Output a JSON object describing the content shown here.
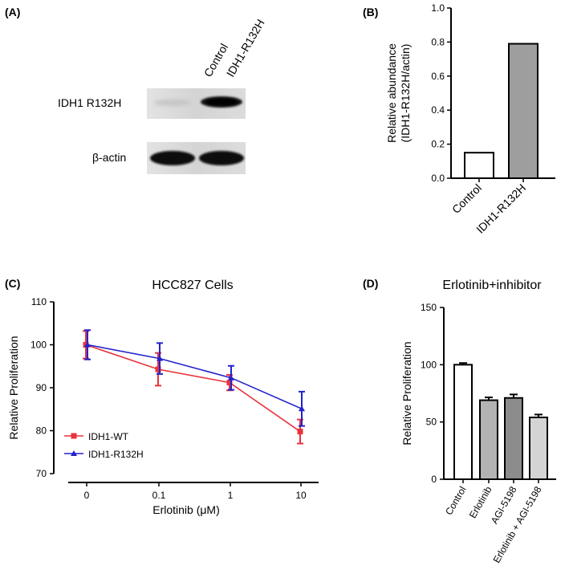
{
  "panels": {
    "a": {
      "letter": "(A)",
      "lane_labels": [
        "Control",
        "IDH1-R132H"
      ],
      "row_labels": [
        "IDH1 R132H",
        "β-actin"
      ]
    },
    "b": {
      "letter": "(B)"
    },
    "c": {
      "letter": "(C)"
    },
    "d": {
      "letter": "(D)"
    }
  },
  "chart_data": [
    {
      "panel": "B",
      "type": "bar",
      "categories": [
        "Control",
        "IDH1-R132H"
      ],
      "values": [
        0.15,
        0.79
      ],
      "colors": [
        "#ffffff",
        "#9e9e9e"
      ],
      "title": "",
      "xlabel": "",
      "ylabel": "Relative abundance (IDH1-R132H/actin)",
      "ylabel_lines": [
        "Relative abundance",
        "(IDH1-R132H/actin)"
      ],
      "ylim": [
        0,
        1.0
      ],
      "yticks": [
        "0.0",
        "0.2",
        "0.4",
        "0.6",
        "0.8",
        "1.0"
      ]
    },
    {
      "panel": "C",
      "type": "line",
      "title": "HCC827 Cells",
      "xlabel": "Erlotinib (μM)",
      "ylabel": "Relative Proliferation",
      "categories": [
        "0",
        "0.1",
        "1",
        "10"
      ],
      "ylim": [
        70,
        110
      ],
      "yticks": [
        "70",
        "80",
        "90",
        "100",
        "110"
      ],
      "series": [
        {
          "name": "IDH1-WT",
          "color": "#e8333c",
          "marker": "square",
          "values": [
            100,
            94.3,
            91.2,
            79.8
          ],
          "errors": [
            3.2,
            3.8,
            1.8,
            2.8
          ]
        },
        {
          "name": "IDH1-R132H",
          "color": "#2222cc",
          "marker": "triangle",
          "values": [
            100,
            96.8,
            92.3,
            85.1
          ],
          "errors": [
            3.4,
            3.6,
            2.8,
            4.0
          ]
        }
      ],
      "legend": "bottom-left"
    },
    {
      "panel": "D",
      "type": "bar",
      "title": "Erlotinib+inhibitor",
      "xlabel": "",
      "ylabel": "Relative Proliferation",
      "categories": [
        "Control",
        "Erlotinib",
        "AGI-5198",
        "Erlotinib + AGI-5198"
      ],
      "values": [
        100,
        69,
        71,
        54
      ],
      "errors": [
        1.5,
        2.5,
        3,
        2.5
      ],
      "colors": [
        "#ffffff",
        "#b3b3b3",
        "#8c8c8c",
        "#d4d4d4"
      ],
      "ylim": [
        0,
        150
      ],
      "yticks": [
        "0",
        "50",
        "100",
        "150"
      ]
    }
  ]
}
